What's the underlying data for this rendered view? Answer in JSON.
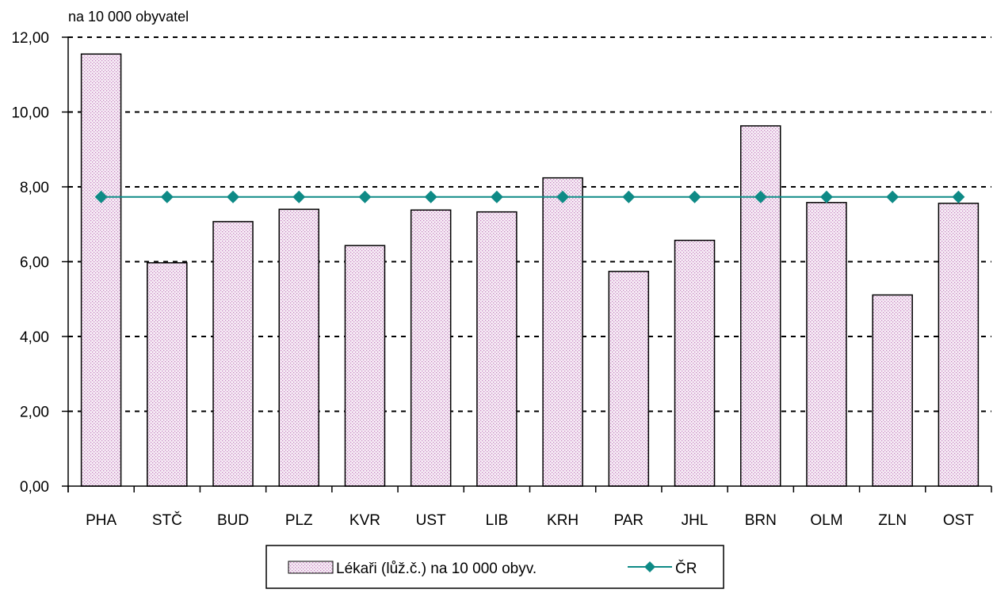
{
  "chart_data": {
    "type": "bar",
    "unit_label": "na 10 000 obyvatel",
    "categories": [
      "PHA",
      "STČ",
      "BUD",
      "PLZ",
      "KVR",
      "UST",
      "LIB",
      "KRH",
      "PAR",
      "JHL",
      "BRN",
      "OLM",
      "ZLN",
      "OST"
    ],
    "series": [
      {
        "name": "Lékaři (lůž.č.) na 10 000 obyv.",
        "type": "bar",
        "values": [
          11.55,
          5.97,
          7.07,
          7.4,
          6.43,
          7.38,
          7.33,
          8.24,
          5.74,
          6.57,
          9.63,
          7.58,
          5.11,
          7.56
        ]
      },
      {
        "name": "ČR",
        "type": "line",
        "values": [
          7.73,
          7.73,
          7.73,
          7.73,
          7.73,
          7.73,
          7.73,
          7.73,
          7.73,
          7.73,
          7.73,
          7.73,
          7.73,
          7.73
        ]
      }
    ],
    "ylim": [
      0,
      12
    ],
    "yticks": [
      "0,00",
      "2,00",
      "4,00",
      "6,00",
      "8,00",
      "10,00",
      "12,00"
    ],
    "grid": "horizontal dashed",
    "legend": "bottom-center",
    "colors": {
      "bar_fill": "#c583c0",
      "bar_bg": "#f7eef6",
      "line": "#0e8a86",
      "marker": "#0e8a86"
    }
  }
}
